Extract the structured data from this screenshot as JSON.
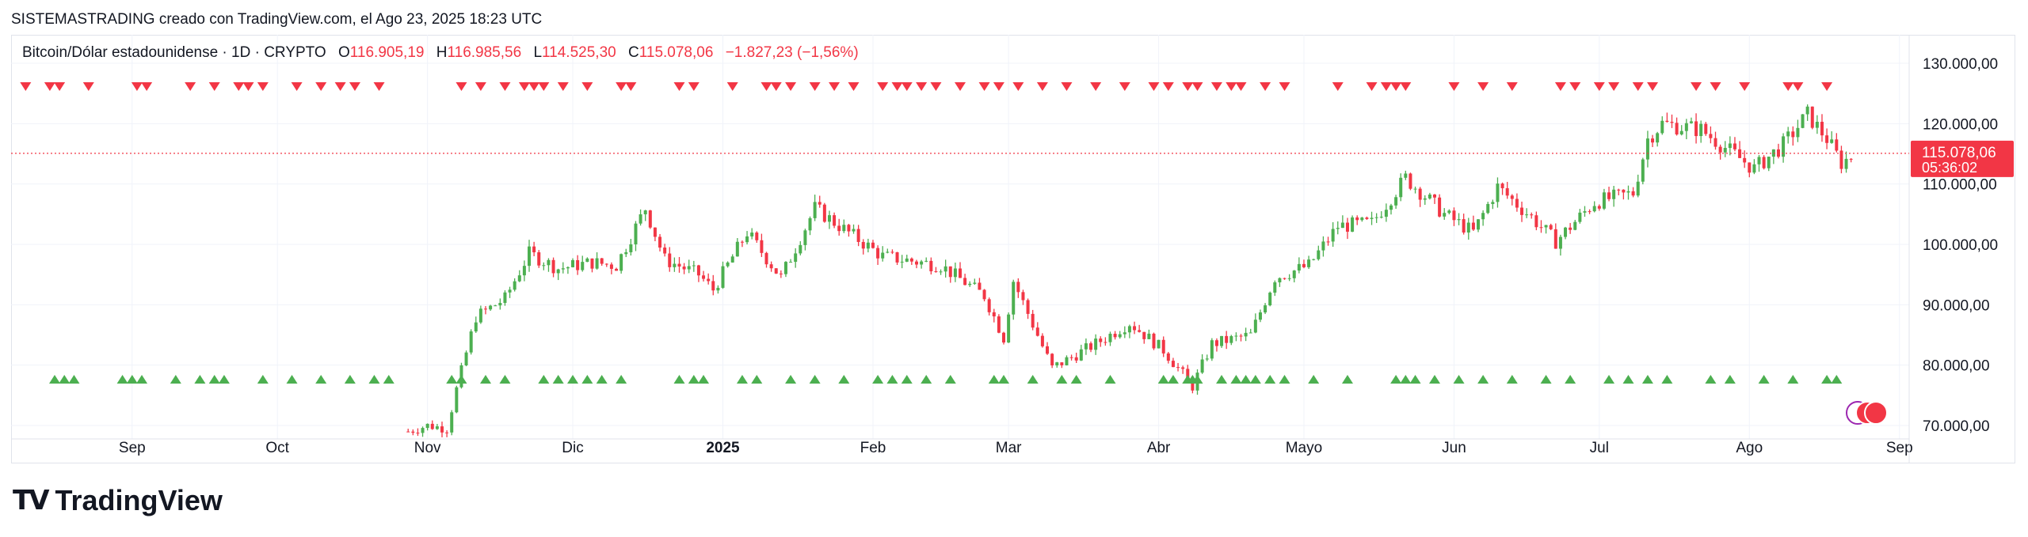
{
  "header": {
    "attribution": "SISTEMASTRADING creado con TradingView.com, el Ago 23, 2025 18:23 UTC"
  },
  "legend": {
    "symbol": "Bitcoin/Dólar estadounidense · 1D · CRYPTO",
    "open_label": "O",
    "open": "116.905,19",
    "high_label": "H",
    "high": "116.985,56",
    "low_label": "L",
    "low": "114.525,30",
    "close_label": "C",
    "close": "115.078,06",
    "change": "−1.827,23 (−1,56%)"
  },
  "price_tag": {
    "price": "115.078,06",
    "countdown": "05:36:02"
  },
  "brand": {
    "name": "TradingView"
  },
  "colors": {
    "up": "#4caf50",
    "down": "#f23645",
    "grid": "#f0f3fa",
    "text": "#131722",
    "axis": "#e0e3eb"
  },
  "chart_data": {
    "type": "candlestick",
    "title": "Bitcoin/Dólar estadounidense · 1D · CRYPTO",
    "x_tick_labels": [
      "Sep",
      "Oct",
      "Nov",
      "Dic",
      "2025",
      "Feb",
      "Mar",
      "Abr",
      "Mayo",
      "Jun",
      "Jul",
      "Ago",
      "Sep"
    ],
    "x_ticks_dates": [
      "2024-09-01",
      "2024-10-01",
      "2024-11-01",
      "2024-12-01",
      "2025-01-01",
      "2025-02-01",
      "2025-03-01",
      "2025-04-01",
      "2025-05-01",
      "2025-06-01",
      "2025-07-01",
      "2025-08-01",
      "2025-09-01"
    ],
    "y_tick_labels": [
      "70.000,00",
      "80.000,00",
      "90.000,00",
      "100.000,00",
      "110.000,00",
      "120.000,00",
      "130.000,00"
    ],
    "y_ticks": [
      70000,
      80000,
      90000,
      100000,
      110000,
      120000,
      130000
    ],
    "ylim": [
      68000,
      133000
    ],
    "xlim": [
      "2024-08-07",
      "2025-09-03"
    ],
    "last_price": 115078.06,
    "series_anchors": [
      {
        "date": "2024-10-28",
        "close": 69000
      },
      {
        "date": "2024-11-01",
        "close": 70000
      },
      {
        "date": "2024-11-05",
        "close": 69500
      },
      {
        "date": "2024-11-07",
        "close": 76000
      },
      {
        "date": "2024-11-11",
        "close": 88000
      },
      {
        "date": "2024-11-17",
        "close": 91000
      },
      {
        "date": "2024-11-22",
        "close": 98500
      },
      {
        "date": "2024-11-28",
        "close": 96000
      },
      {
        "date": "2024-12-05",
        "close": 97000
      },
      {
        "date": "2024-12-10",
        "close": 96500
      },
      {
        "date": "2024-12-16",
        "close": 106000
      },
      {
        "date": "2024-12-20",
        "close": 97500
      },
      {
        "date": "2024-12-27",
        "close": 95000
      },
      {
        "date": "2024-12-30",
        "close": 92500
      },
      {
        "date": "2025-01-06",
        "close": 102000
      },
      {
        "date": "2025-01-13",
        "close": 94500
      },
      {
        "date": "2025-01-20",
        "close": 106000
      },
      {
        "date": "2025-01-26",
        "close": 102500
      },
      {
        "date": "2025-02-03",
        "close": 98000
      },
      {
        "date": "2025-02-15",
        "close": 96500
      },
      {
        "date": "2025-02-24",
        "close": 91500
      },
      {
        "date": "2025-02-28",
        "close": 84500
      },
      {
        "date": "2025-03-02",
        "close": 94000
      },
      {
        "date": "2025-03-10",
        "close": 79500
      },
      {
        "date": "2025-03-20",
        "close": 84000
      },
      {
        "date": "2025-03-26",
        "close": 87000
      },
      {
        "date": "2025-04-02",
        "close": 82500
      },
      {
        "date": "2025-04-08",
        "close": 76500
      },
      {
        "date": "2025-04-12",
        "close": 83500
      },
      {
        "date": "2025-04-20",
        "close": 85000
      },
      {
        "date": "2025-04-25",
        "close": 94500
      },
      {
        "date": "2025-05-02",
        "close": 96500
      },
      {
        "date": "2025-05-08",
        "close": 103000
      },
      {
        "date": "2025-05-15",
        "close": 103500
      },
      {
        "date": "2025-05-22",
        "close": 111000
      },
      {
        "date": "2025-05-30",
        "close": 105000
      },
      {
        "date": "2025-06-05",
        "close": 102000
      },
      {
        "date": "2025-06-10",
        "close": 109500
      },
      {
        "date": "2025-06-17",
        "close": 104500
      },
      {
        "date": "2025-06-22",
        "close": 100500
      },
      {
        "date": "2025-06-30",
        "close": 107000
      },
      {
        "date": "2025-07-08",
        "close": 108500
      },
      {
        "date": "2025-07-11",
        "close": 117500
      },
      {
        "date": "2025-07-14",
        "close": 120000
      },
      {
        "date": "2025-07-22",
        "close": 119000
      },
      {
        "date": "2025-08-02",
        "close": 112500
      },
      {
        "date": "2025-08-08",
        "close": 116500
      },
      {
        "date": "2025-08-13",
        "close": 121500
      },
      {
        "date": "2025-08-17",
        "close": 117500
      },
      {
        "date": "2025-08-20",
        "close": 113500
      },
      {
        "date": "2025-08-23",
        "close": 115078
      }
    ],
    "sell_signal_dates": [
      "2024-08-10",
      "2024-08-15",
      "2024-08-17",
      "2024-08-23",
      "2024-09-02",
      "2024-09-04",
      "2024-09-13",
      "2024-09-18",
      "2024-09-23",
      "2024-09-25",
      "2024-09-28",
      "2024-10-05",
      "2024-10-10",
      "2024-10-14",
      "2024-10-17",
      "2024-10-22",
      "2024-11-08",
      "2024-11-12",
      "2024-11-17",
      "2024-11-21",
      "2024-11-23",
      "2024-11-25",
      "2024-11-29",
      "2024-12-04",
      "2024-12-11",
      "2024-12-13",
      "2024-12-23",
      "2024-12-26",
      "2025-01-03",
      "2025-01-10",
      "2025-01-12",
      "2025-01-15",
      "2025-01-20",
      "2025-01-24",
      "2025-01-28",
      "2025-02-03",
      "2025-02-06",
      "2025-02-08",
      "2025-02-11",
      "2025-02-14",
      "2025-02-19",
      "2025-02-24",
      "2025-02-27",
      "2025-03-03",
      "2025-03-08",
      "2025-03-13",
      "2025-03-19",
      "2025-03-25",
      "2025-03-31",
      "2025-04-03",
      "2025-04-07",
      "2025-04-09",
      "2025-04-13",
      "2025-04-16",
      "2025-04-18",
      "2025-04-23",
      "2025-04-27",
      "2025-05-08",
      "2025-05-15",
      "2025-05-18",
      "2025-05-20",
      "2025-05-22",
      "2025-06-01",
      "2025-06-07",
      "2025-06-13",
      "2025-06-23",
      "2025-06-26",
      "2025-07-01",
      "2025-07-04",
      "2025-07-09",
      "2025-07-12",
      "2025-07-21",
      "2025-07-25",
      "2025-07-31",
      "2025-08-09",
      "2025-08-11",
      "2025-08-17"
    ],
    "buy_signal_dates": [
      "2024-08-16",
      "2024-08-18",
      "2024-08-20",
      "2024-08-30",
      "2024-09-01",
      "2024-09-03",
      "2024-09-10",
      "2024-09-15",
      "2024-09-18",
      "2024-09-20",
      "2024-09-28",
      "2024-10-04",
      "2024-10-10",
      "2024-10-16",
      "2024-10-21",
      "2024-10-24",
      "2024-11-06",
      "2024-11-08",
      "2024-11-13",
      "2024-11-17",
      "2024-11-25",
      "2024-11-28",
      "2024-12-01",
      "2024-12-04",
      "2024-12-07",
      "2024-12-11",
      "2024-12-23",
      "2024-12-26",
      "2024-12-28",
      "2025-01-05",
      "2025-01-08",
      "2025-01-15",
      "2025-01-20",
      "2025-01-26",
      "2025-02-02",
      "2025-02-05",
      "2025-02-08",
      "2025-02-12",
      "2025-02-17",
      "2025-02-26",
      "2025-02-28",
      "2025-03-06",
      "2025-03-12",
      "2025-03-15",
      "2025-03-22",
      "2025-04-02",
      "2025-04-04",
      "2025-04-07",
      "2025-04-08",
      "2025-04-09",
      "2025-04-14",
      "2025-04-17",
      "2025-04-19",
      "2025-04-21",
      "2025-04-24",
      "2025-04-27",
      "2025-05-03",
      "2025-05-10",
      "2025-05-20",
      "2025-05-22",
      "2025-05-24",
      "2025-05-28",
      "2025-06-02",
      "2025-06-07",
      "2025-06-13",
      "2025-06-20",
      "2025-06-25",
      "2025-07-03",
      "2025-07-07",
      "2025-07-11",
      "2025-07-15",
      "2025-07-24",
      "2025-07-28",
      "2025-08-04",
      "2025-08-10",
      "2025-08-17",
      "2025-08-19"
    ],
    "grid": true
  }
}
